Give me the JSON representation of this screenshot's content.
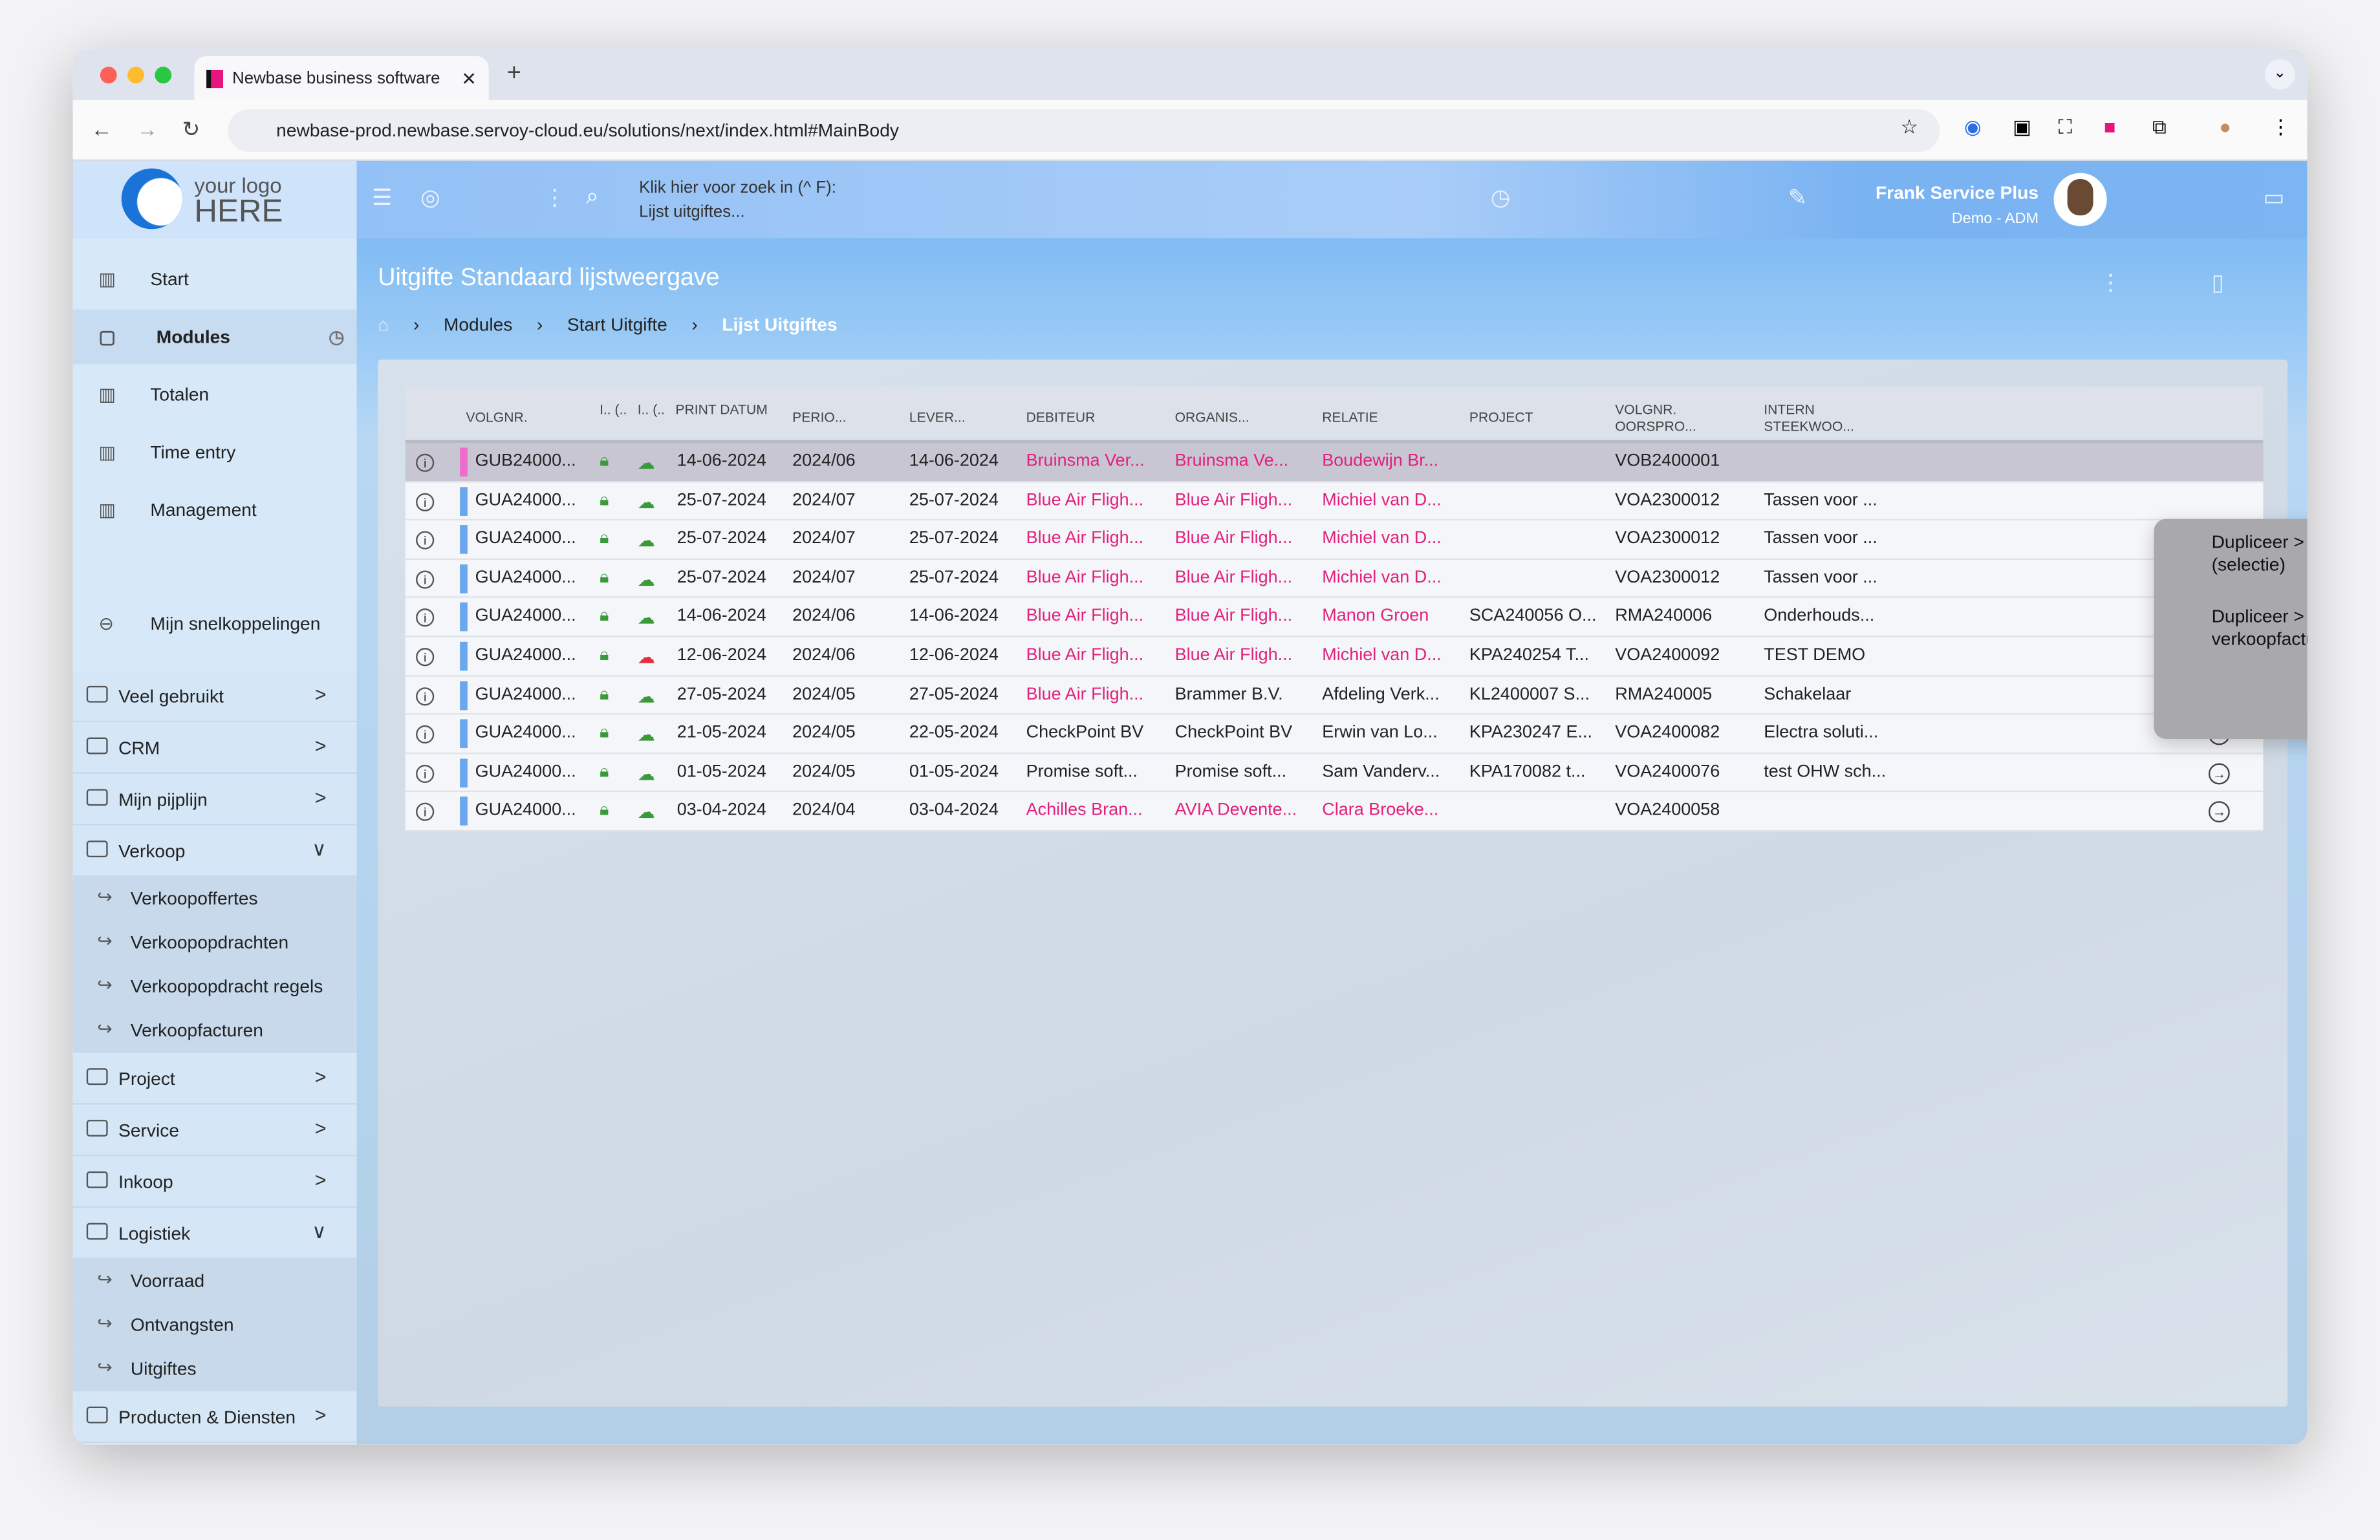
{
  "browser": {
    "tab_title": "Newbase business software",
    "url": "newbase-prod.newbase.servoy-cloud.eu/solutions/next/index.html#MainBody"
  },
  "header": {
    "logo_line1": "your logo",
    "logo_line2": "HERE",
    "search_hint": "Klik hier voor zoek in (^ F):",
    "search_context": "Lijst uitgiftes...",
    "user_name": "Frank Service Plus",
    "user_role": "Demo - ADM"
  },
  "sidebar": {
    "items": [
      {
        "label": "Start"
      },
      {
        "label": "Modules"
      },
      {
        "label": "Totalen"
      },
      {
        "label": "Time entry"
      },
      {
        "label": "Management"
      }
    ],
    "shortcuts": "Mijn snelkoppelingen",
    "folders": [
      {
        "label": "Veel gebruikt"
      },
      {
        "label": "CRM"
      },
      {
        "label": "Mijn pijplijn"
      },
      {
        "label": "Verkoop",
        "sub": [
          "Verkoopoffertes",
          "Verkoopopdrachten",
          "Verkoopopdracht regels",
          "Verkoopfacturen"
        ]
      },
      {
        "label": "Project"
      },
      {
        "label": "Service"
      },
      {
        "label": "Inkoop"
      },
      {
        "label": "Logistiek",
        "sub": [
          "Voorraad",
          "Ontvangsten",
          "Uitgiftes"
        ]
      },
      {
        "label": "Producten & Diensten"
      }
    ]
  },
  "page": {
    "title": "Uitgifte Standaard lijstweergave",
    "breadcrumb": [
      "Modules",
      "Start Uitgifte",
      "Lijst Uitgiftes"
    ]
  },
  "table": {
    "headers": [
      "VOLGNR.",
      "I.. (..",
      "I.. (..",
      "PRINT DATUM",
      "PERIO...",
      "LEVER...",
      "DEBITEUR",
      "ORGANIS...",
      "RELATIE",
      "PROJECT",
      "VOLGNR. OORSPRO...",
      "INTERN STEEKWOO..."
    ],
    "rows": [
      [
        "GUB24000...",
        "14-06-2024",
        "2024/06",
        "14-06-2024",
        "Bruinsma Ver...",
        "Bruinsma Ve...",
        "Boudewijn Br...",
        "",
        "VOB2400001",
        ""
      ],
      [
        "GUA24000...",
        "25-07-2024",
        "2024/07",
        "25-07-2024",
        "Blue Air Fligh...",
        "Blue Air Fligh...",
        "Michiel van D...",
        "",
        "VOA2300012",
        "Tassen voor ..."
      ],
      [
        "GUA24000...",
        "25-07-2024",
        "2024/07",
        "25-07-2024",
        "Blue Air Fligh...",
        "Blue Air Fligh...",
        "Michiel van D...",
        "",
        "VOA2300012",
        "Tassen voor ..."
      ],
      [
        "GUA24000...",
        "25-07-2024",
        "2024/07",
        "25-07-2024",
        "Blue Air Fligh...",
        "Blue Air Fligh...",
        "Michiel van D...",
        "",
        "VOA2300012",
        "Tassen voor ..."
      ],
      [
        "GUA24000...",
        "14-06-2024",
        "2024/06",
        "14-06-2024",
        "Blue Air Fligh...",
        "Blue Air Fligh...",
        "Manon Groen",
        "SCA240056 O...",
        "RMA240006",
        "Onderhouds..."
      ],
      [
        "GUA24000...",
        "12-06-2024",
        "2024/06",
        "12-06-2024",
        "Blue Air Fligh...",
        "Blue Air Fligh...",
        "Michiel van D...",
        "KPA240254 T...",
        "VOA2400092",
        "TEST DEMO"
      ],
      [
        "GUA24000...",
        "27-05-2024",
        "2024/05",
        "27-05-2024",
        "Blue Air Fligh...",
        "Brammer B.V.",
        "Afdeling Verk...",
        "KL2400007 S...",
        "RMA240005",
        "Schakelaar"
      ],
      [
        "GUA24000...",
        "21-05-2024",
        "2024/05",
        "22-05-2024",
        "CheckPoint BV",
        "CheckPoint BV",
        "Erwin van Lo...",
        "KPA230247 E...",
        "VOA2400082",
        "Electra soluti..."
      ],
      [
        "GUA24000...",
        "01-05-2024",
        "2024/05",
        "01-05-2024",
        "Promise soft...",
        "Promise soft...",
        "Sam Vanderv...",
        "KPA170082 t...",
        "VOA2400076",
        "test OHW sch..."
      ],
      [
        "GUA24000...",
        "03-04-2024",
        "2024/04",
        "03-04-2024",
        "Achilles Bran...",
        "AVIA Devente...",
        "Clara Broeke...",
        "",
        "VOA2400058",
        ""
      ]
    ],
    "pink_cells": [
      [
        1,
        1,
        1
      ],
      [
        1,
        1,
        1
      ],
      [
        1,
        1,
        1
      ],
      [
        1,
        1,
        1
      ],
      [
        1,
        1,
        1
      ],
      [
        1,
        1,
        1
      ],
      [
        1,
        0,
        0
      ],
      [
        0,
        0,
        0
      ],
      [
        0,
        0,
        0
      ],
      [
        1,
        1,
        1
      ]
    ],
    "cloud_error_row": 5
  },
  "context_menu": {
    "items": [
      "Dupliceer > verkoopfacturen (selectie)",
      "Dupliceer > te verzamelen verkoopfactuur regels"
    ]
  },
  "colors": {
    "accent": "#8dbdf5",
    "link_pink": "#e2207d",
    "row_bar": "#6aa7ef",
    "selected_bar": "#ef6ccf"
  }
}
